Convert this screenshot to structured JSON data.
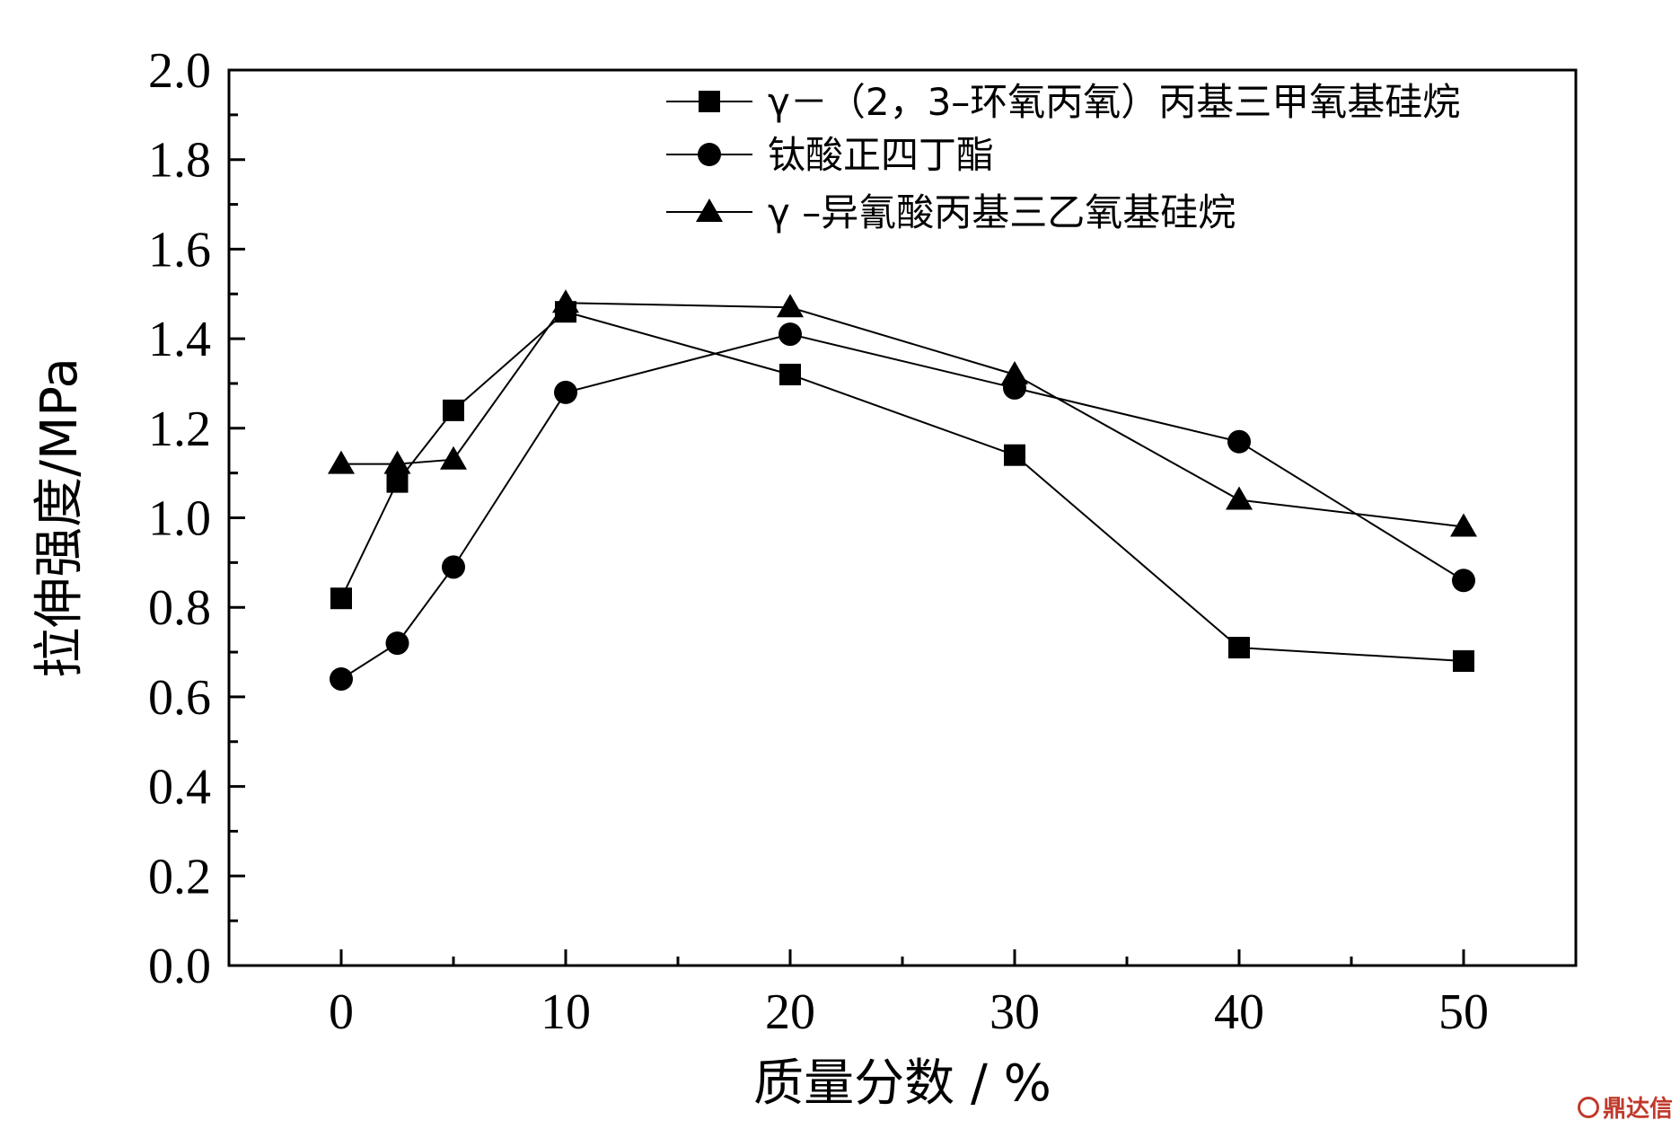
{
  "chart_data": {
    "type": "line",
    "xlabel": "质量分数 / %",
    "ylabel": "拉伸强度/MPa",
    "xlim": [
      -5,
      55
    ],
    "ylim": [
      0.0,
      2.0
    ],
    "x_ticks": [
      "0",
      "10",
      "20",
      "30",
      "40",
      "50"
    ],
    "y_ticks": [
      "0.0",
      "0.2",
      "0.4",
      "0.6",
      "0.8",
      "1.0",
      "1.2",
      "1.4",
      "1.6",
      "1.8",
      "2.0"
    ],
    "legend_position": "top-right",
    "grid": false,
    "series": [
      {
        "name": "γ－（2，3–环氧丙氧）丙基三甲氧基硅烷",
        "marker": "square",
        "x": [
          0,
          2.5,
          5,
          10,
          20,
          30,
          40,
          50
        ],
        "y": [
          0.82,
          1.08,
          1.24,
          1.46,
          1.32,
          1.14,
          0.71,
          0.68
        ]
      },
      {
        "name": "钛酸正四丁酯",
        "marker": "circle",
        "x": [
          0,
          2.5,
          5,
          10,
          20,
          30,
          40,
          50
        ],
        "y": [
          0.64,
          0.72,
          0.89,
          1.28,
          1.41,
          1.29,
          1.17,
          0.86
        ]
      },
      {
        "name": "γ –异氰酸丙基三乙氧基硅烷",
        "marker": "triangle",
        "x": [
          0,
          2.5,
          5,
          10,
          20,
          30,
          40,
          50
        ],
        "y": [
          1.12,
          1.12,
          1.13,
          1.48,
          1.47,
          1.32,
          1.04,
          0.98
        ]
      }
    ]
  },
  "watermark": {
    "text": "鼎达信",
    "color": "#c0392b"
  }
}
